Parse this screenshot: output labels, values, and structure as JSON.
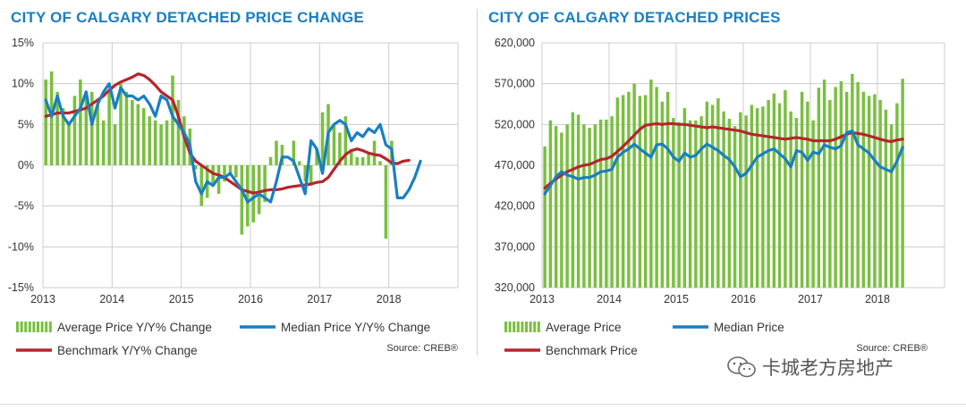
{
  "watermark": {
    "text": "卡城老方房地产"
  },
  "colors": {
    "bars": "#79bf3f",
    "median": "#1a7fc1",
    "benchmark": "#b5252c",
    "title": "#1a7fc1",
    "grid": "#cccccc"
  },
  "chart_data": [
    {
      "type": "bar",
      "title": "CITY OF CALGARY DETACHED PRICE CHANGE",
      "source": "Source: CREB®",
      "ylim": [
        -15,
        15
      ],
      "yticks": [
        15,
        10,
        5,
        0,
        -5,
        -10,
        -15
      ],
      "ytick_labels": [
        "15%",
        "10%",
        "5%",
        "0%",
        "-5%",
        "-10%",
        "-15%"
      ],
      "xlim": [
        0,
        72
      ],
      "xticks": [
        0,
        12,
        24,
        36,
        48,
        60
      ],
      "xtick_labels": [
        "2013",
        "2014",
        "2015",
        "2016",
        "2017",
        "2018"
      ],
      "legend": [
        "Average Price Y/Y% Change",
        "Median Price Y/Y% Change",
        "Benchmark Y/Y% Change"
      ],
      "series": [
        {
          "name": "Average Price Y/Y% Change",
          "kind": "bar",
          "values": [
            10.5,
            11.5,
            9,
            7,
            5,
            8.5,
            10.5,
            8.5,
            9,
            7.5,
            5.5,
            9,
            5,
            10,
            9,
            8,
            7.5,
            7,
            6,
            5.5,
            5,
            5.5,
            11,
            8,
            6,
            4.5,
            -0.5,
            -5,
            -4,
            -2.5,
            -3.5,
            -2,
            -1,
            -1.5,
            -8.5,
            -7.5,
            -7,
            -6,
            -4.5,
            1,
            3,
            2.5,
            0,
            3,
            0.5,
            -2,
            -2.5,
            2,
            6.5,
            7.5,
            5,
            4,
            6,
            2,
            1,
            1,
            1.5,
            3,
            0.5,
            -9,
            3
          ]
        },
        {
          "name": "Median Price Y/Y% Change",
          "kind": "line",
          "values": [
            8,
            6,
            8.5,
            6,
            5,
            6,
            7,
            9,
            5,
            7.5,
            9,
            10,
            7,
            9.5,
            8.5,
            8.5,
            8,
            8.5,
            7.5,
            6,
            8.5,
            8,
            6,
            5,
            4,
            2.5,
            -2,
            -3.5,
            -2,
            -2.5,
            -1.5,
            -1.5,
            -1,
            -2,
            -3,
            -4.5,
            -4,
            -3.5,
            -4,
            -4.5,
            -2,
            1,
            1,
            0.5,
            -1.5,
            -3.5,
            3,
            2,
            -1,
            4,
            5,
            5.5,
            5,
            3,
            4,
            3.5,
            4.5,
            4,
            5,
            2.5,
            2,
            -4,
            -4,
            -3,
            -1.5,
            0.5
          ]
        },
        {
          "name": "Benchmark Y/Y% Change",
          "kind": "line",
          "values": [
            6,
            6.2,
            6.4,
            6.4,
            6.4,
            6.6,
            6.8,
            7,
            7.5,
            8,
            8.5,
            9.2,
            9.8,
            10.2,
            10.5,
            10.8,
            11.2,
            11,
            10.5,
            9.8,
            9,
            8.5,
            8,
            6,
            3.5,
            1.5,
            0.5,
            0,
            -0.5,
            -1,
            -1.2,
            -1.5,
            -2,
            -2.5,
            -3,
            -3.2,
            -3.4,
            -3.3,
            -3.1,
            -3,
            -3,
            -2.9,
            -2.7,
            -2.6,
            -2.5,
            -2.4,
            -2.3,
            -2.1,
            -2,
            -1.5,
            -0.5,
            0.5,
            1.3,
            1.8,
            2,
            1.8,
            1.5,
            1.3,
            1.2,
            0.8,
            0.3,
            0.2,
            0.5,
            0.6
          ]
        }
      ]
    },
    {
      "type": "bar",
      "title": "CITY OF CALGARY DETACHED PRICES",
      "source": "Source: CREB®",
      "ylim": [
        320000,
        620000
      ],
      "yticks": [
        620000,
        570000,
        520000,
        470000,
        420000,
        370000,
        320000
      ],
      "ytick_labels": [
        "620,000",
        "570,000",
        "520,000",
        "470,000",
        "420,000",
        "370,000",
        "320,000"
      ],
      "xlim": [
        0,
        72
      ],
      "xticks": [
        0,
        12,
        24,
        36,
        48,
        60
      ],
      "xtick_labels": [
        "2013",
        "2014",
        "2015",
        "2016",
        "2017",
        "2018"
      ],
      "legend": [
        "Average Price",
        "Median Price",
        "Benchmark Price"
      ],
      "series": [
        {
          "name": "Average Price",
          "kind": "bar",
          "values": [
            493000,
            525000,
            518000,
            510000,
            520000,
            535000,
            532000,
            520000,
            516000,
            520000,
            526000,
            526000,
            530000,
            553000,
            556000,
            560000,
            570000,
            555000,
            556000,
            575000,
            566000,
            548000,
            560000,
            528000,
            523000,
            540000,
            525000,
            525000,
            530000,
            548000,
            544000,
            552000,
            536000,
            527000,
            518000,
            535000,
            531000,
            544000,
            540000,
            542000,
            550000,
            558000,
            546000,
            562000,
            536000,
            528000,
            560000,
            548000,
            525000,
            565000,
            575000,
            550000,
            566000,
            573000,
            560000,
            582000,
            572000,
            560000,
            555000,
            557000,
            550000,
            538000,
            520000,
            546000,
            576000
          ]
        },
        {
          "name": "Median Price",
          "kind": "line",
          "values": [
            435000,
            445000,
            456000,
            462000,
            458000,
            456000,
            453000,
            455000,
            455000,
            458000,
            462000,
            463000,
            465000,
            480000,
            486000,
            490000,
            496000,
            490000,
            485000,
            480000,
            495000,
            496000,
            490000,
            480000,
            475000,
            485000,
            480000,
            482000,
            490000,
            496000,
            492000,
            488000,
            482000,
            477000,
            468000,
            456000,
            460000,
            470000,
            480000,
            484000,
            488000,
            490000,
            484000,
            478000,
            468000,
            488000,
            486000,
            476000,
            486000,
            484000,
            495000,
            492000,
            490000,
            494000,
            510000,
            512000,
            495000,
            490000,
            485000,
            476000,
            468000,
            465000,
            462000,
            475000,
            492000
          ]
        },
        {
          "name": "Benchmark Price",
          "kind": "line",
          "values": [
            442000,
            448000,
            453000,
            458000,
            462000,
            465000,
            468000,
            470000,
            471000,
            474000,
            477000,
            478000,
            481000,
            487000,
            493000,
            500000,
            507000,
            514000,
            519000,
            520000,
            521000,
            520000,
            521000,
            521000,
            520000,
            520000,
            519000,
            518000,
            517000,
            516000,
            517000,
            516000,
            515000,
            514000,
            513000,
            512000,
            510000,
            508000,
            507000,
            506000,
            505000,
            504000,
            503000,
            502000,
            503000,
            504000,
            503000,
            502000,
            500000,
            500000,
            500000,
            500000,
            502000,
            505000,
            508000,
            510000,
            509000,
            508000,
            506000,
            504000,
            502000,
            500000,
            499000,
            501000,
            502000
          ]
        }
      ]
    }
  ]
}
